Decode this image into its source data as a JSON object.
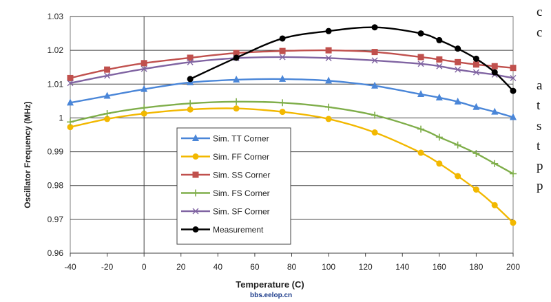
{
  "chart_data": {
    "type": "line",
    "xlabel": "Temperature (C)",
    "ylabel": "Oscillator Frequency (MHz)",
    "xlim": [
      -40,
      200
    ],
    "ylim": [
      0.96,
      1.03
    ],
    "xticks": [
      "-40",
      "-20",
      "0",
      "20",
      "40",
      "60",
      "80",
      "100",
      "120",
      "140",
      "160",
      "180",
      "200"
    ],
    "yticks": [
      "0.96",
      "0.97",
      "0.98",
      "0.99",
      "1",
      "1.01",
      "1.02",
      "1.03"
    ],
    "grid": "horizontal",
    "legend_position": "lower-left",
    "series": [
      {
        "name": "Sim. TT Corner",
        "color": "#4a86d8",
        "marker": "triangle",
        "x": [
          -40,
          -20,
          0,
          25,
          50,
          75,
          100,
          125,
          150,
          160,
          170,
          180,
          190,
          200
        ],
        "y": [
          1.0045,
          1.0065,
          1.0085,
          1.0105,
          1.0113,
          1.0115,
          1.011,
          1.0095,
          1.007,
          1.006,
          1.0048,
          1.0032,
          1.0018,
          1.0002
        ]
      },
      {
        "name": "Sim. FF Corner",
        "color": "#f2b800",
        "marker": "circle",
        "x": [
          -40,
          -20,
          0,
          25,
          50,
          75,
          100,
          125,
          150,
          160,
          170,
          180,
          190,
          200
        ],
        "y": [
          0.9973,
          0.9997,
          1.0013,
          1.0025,
          1.0028,
          1.0018,
          0.9997,
          0.9957,
          0.9897,
          0.9865,
          0.9828,
          0.9788,
          0.9742,
          0.969
        ]
      },
      {
        "name": "Sim. SS Corner",
        "color": "#c0504d",
        "marker": "square",
        "x": [
          -40,
          -20,
          0,
          25,
          50,
          75,
          100,
          125,
          150,
          160,
          170,
          180,
          190,
          200
        ],
        "y": [
          1.0118,
          1.0143,
          1.0162,
          1.0178,
          1.0192,
          1.0198,
          1.02,
          1.0195,
          1.018,
          1.0173,
          1.0165,
          1.0158,
          1.0153,
          1.0148
        ]
      },
      {
        "name": "Sim. FS Corner",
        "color": "#7fae4a",
        "marker": "plus",
        "x": [
          -40,
          -20,
          0,
          25,
          50,
          75,
          100,
          125,
          150,
          160,
          170,
          180,
          190,
          200
        ],
        "y": [
          0.9988,
          1.0013,
          1.003,
          1.0043,
          1.0048,
          1.0045,
          1.0032,
          1.0008,
          0.9967,
          0.9943,
          0.992,
          0.9895,
          0.9865,
          0.9835
        ]
      },
      {
        "name": "Sim. SF Corner",
        "color": "#8064a2",
        "marker": "x",
        "x": [
          -40,
          -20,
          0,
          25,
          50,
          75,
          100,
          125,
          150,
          160,
          170,
          180,
          190,
          200
        ],
        "y": [
          1.0103,
          1.0125,
          1.0145,
          1.0165,
          1.0177,
          1.018,
          1.0177,
          1.017,
          1.016,
          1.0153,
          1.0143,
          1.0135,
          1.0128,
          1.0118
        ]
      },
      {
        "name": "Measurement",
        "color": "#000000",
        "marker": "circle",
        "x": [
          25,
          50,
          75,
          100,
          125,
          150,
          160,
          170,
          180,
          190,
          200
        ],
        "y": [
          1.0115,
          1.0178,
          1.0235,
          1.0257,
          1.0268,
          1.025,
          1.023,
          1.0205,
          1.0175,
          1.0135,
          1.008
        ]
      }
    ]
  },
  "side_text": [
    "c",
    "c",
    "a",
    "t",
    "s",
    "t",
    "p",
    "p"
  ],
  "watermark": "bbs.eelop.cn"
}
